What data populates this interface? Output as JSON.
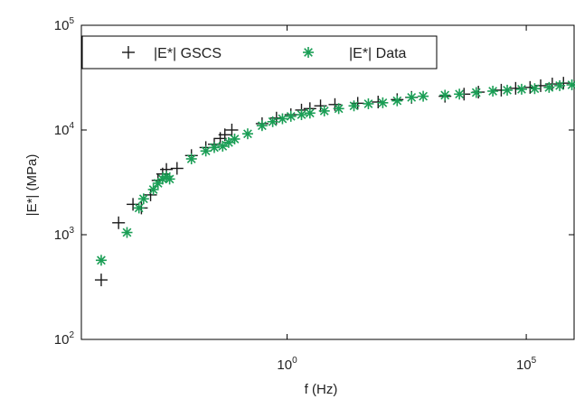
{
  "chart_data": {
    "type": "scatter",
    "title": "",
    "xlabel": "f (Hz)",
    "ylabel": "|E*| (MPa)",
    "x_scale": "log",
    "y_scale": "log",
    "xlim": [
      5e-05,
      1000000
    ],
    "ylim": [
      100,
      100000
    ],
    "x_ticks": [
      {
        "value": 1,
        "base": "10",
        "exp": "0"
      },
      {
        "value": 100000,
        "base": "10",
        "exp": "5"
      }
    ],
    "y_ticks": [
      {
        "value": 100,
        "base": "10",
        "exp": "2"
      },
      {
        "value": 1000,
        "base": "10",
        "exp": "3"
      },
      {
        "value": 10000,
        "base": "10",
        "exp": "4"
      },
      {
        "value": 100000,
        "base": "10",
        "exp": "5"
      }
    ],
    "grid": false,
    "legend_position": "top-left",
    "series": [
      {
        "name": "|E*| GSCS",
        "marker": "plus",
        "color": "#1a1a1a",
        "points": [
          [
            0.00013,
            370
          ],
          [
            0.0003,
            1300
          ],
          [
            0.0006,
            1950
          ],
          [
            0.0009,
            1800
          ],
          [
            0.0014,
            2400
          ],
          [
            0.002,
            3300
          ],
          [
            0.0025,
            3800
          ],
          [
            0.003,
            4200
          ],
          [
            0.005,
            4300
          ],
          [
            0.01,
            5700
          ],
          [
            0.02,
            6800
          ],
          [
            0.03,
            7300
          ],
          [
            0.04,
            8300
          ],
          [
            0.05,
            9000
          ],
          [
            0.07,
            10000
          ],
          [
            0.3,
            11500
          ],
          [
            0.6,
            13000
          ],
          [
            1.2,
            14000
          ],
          [
            2,
            15500
          ],
          [
            3,
            16000
          ],
          [
            5,
            17000
          ],
          [
            10,
            17500
          ],
          [
            30,
            18000
          ],
          [
            80,
            18500
          ],
          [
            200,
            19500
          ],
          [
            400,
            20500
          ],
          [
            2000,
            21000
          ],
          [
            5000,
            22000
          ],
          [
            10000,
            23000
          ],
          [
            30000,
            24000
          ],
          [
            60000,
            25000
          ],
          [
            120000,
            25500
          ],
          [
            200000,
            26500
          ],
          [
            350000,
            27500
          ],
          [
            600000,
            28000
          ]
        ]
      },
      {
        "name": "|E*| Data",
        "marker": "asterisk",
        "color": "#1a9e55",
        "points": [
          [
            0.00013,
            570
          ],
          [
            0.00045,
            1050
          ],
          [
            0.0008,
            1800
          ],
          [
            0.001,
            2200
          ],
          [
            0.0016,
            2700
          ],
          [
            0.002,
            3100
          ],
          [
            0.0025,
            3400
          ],
          [
            0.003,
            3600
          ],
          [
            0.0035,
            3400
          ],
          [
            0.01,
            5300
          ],
          [
            0.02,
            6300
          ],
          [
            0.03,
            6800
          ],
          [
            0.045,
            7000
          ],
          [
            0.06,
            7600
          ],
          [
            0.08,
            8200
          ],
          [
            0.15,
            9200
          ],
          [
            0.3,
            11000
          ],
          [
            0.5,
            12000
          ],
          [
            0.8,
            12800
          ],
          [
            1.2,
            13500
          ],
          [
            2,
            14000
          ],
          [
            3,
            14500
          ],
          [
            6,
            15200
          ],
          [
            12,
            16000
          ],
          [
            25,
            17000
          ],
          [
            50,
            17800
          ],
          [
            100,
            18200
          ],
          [
            200,
            19000
          ],
          [
            400,
            20500
          ],
          [
            700,
            21000
          ],
          [
            2000,
            21500
          ],
          [
            4000,
            22000
          ],
          [
            9000,
            22800
          ],
          [
            20000,
            23500
          ],
          [
            40000,
            24000
          ],
          [
            80000,
            24500
          ],
          [
            150000,
            24800
          ],
          [
            300000,
            25500
          ],
          [
            500000,
            26500
          ],
          [
            900000,
            27000
          ]
        ]
      }
    ]
  }
}
